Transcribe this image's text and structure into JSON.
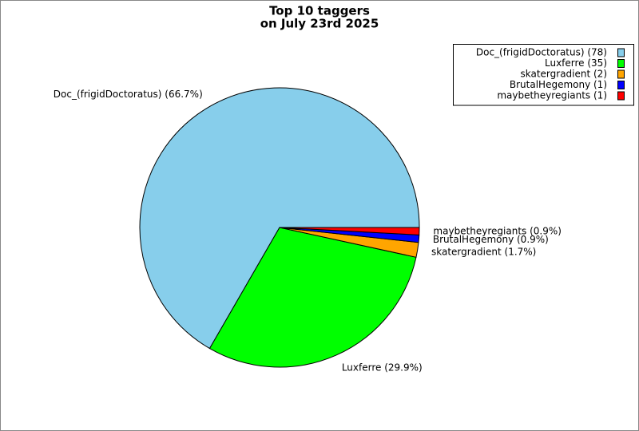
{
  "chart_data": {
    "type": "pie",
    "title": [
      "Top 10 taggers",
      "on July 23rd 2025"
    ],
    "categories": [
      "Doc_(frigidDoctoratus) (78)",
      "Luxferre (35)",
      "skatergradient (2)",
      "BrutalHegemony (1)",
      "maybetheyregiants (1)"
    ],
    "values": [
      78,
      35,
      2,
      1,
      1
    ],
    "slice_labels": [
      "Doc_(frigidDoctoratus) (66.7%)",
      "Luxferre (29.9%)",
      "skatergradient (1.7%)",
      "BrutalHegemony (0.9%)",
      "maybetheyregiants (0.9%)"
    ],
    "colors": [
      "#87ceeb",
      "#00ff00",
      "#ffa500",
      "#0000ff",
      "#ff0000"
    ],
    "legend": "upper right"
  }
}
